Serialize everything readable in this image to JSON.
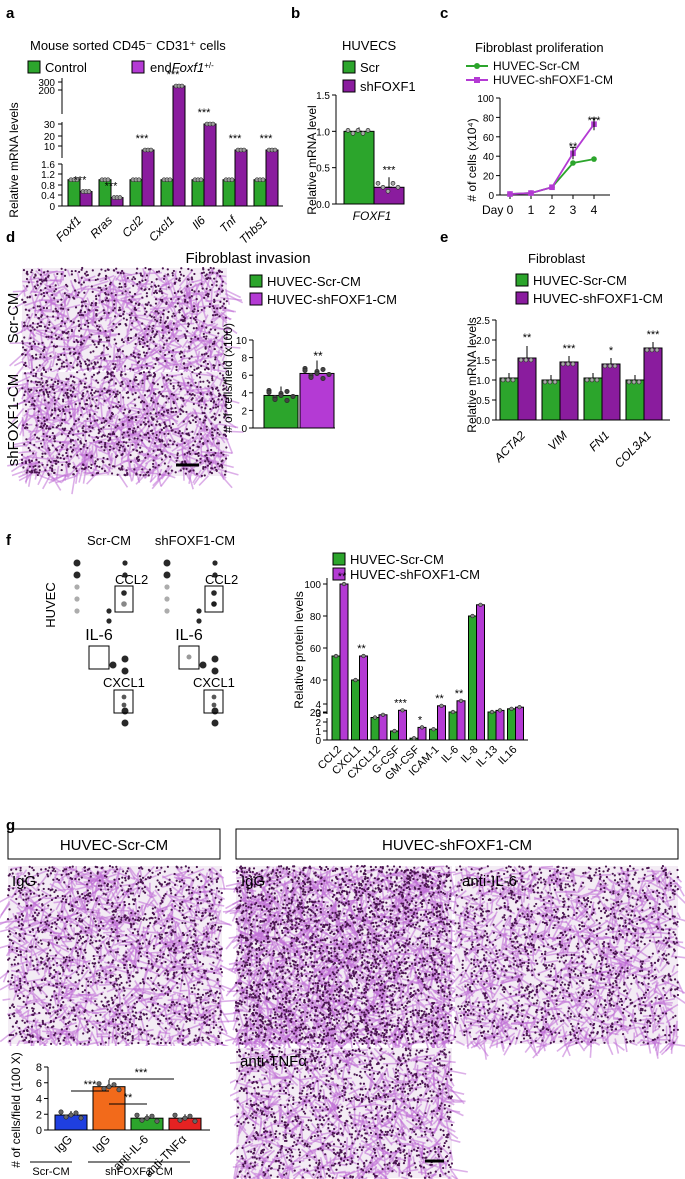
{
  "colors": {
    "green": "#2ca52c",
    "purple": "#8a1c9e",
    "bright_purple": "#b43ad4",
    "blue": "#1f3fe0",
    "orange": "#f26a1b",
    "red": "#e52222",
    "stain": "#c06ed6"
  },
  "panels": {
    "a": {
      "letter": "a",
      "title": "Mouse sorted CD45⁻ CD31⁺ cells",
      "legend": [
        "Control",
        "endFoxf1+/-"
      ],
      "ylabel": "Relative mRNA levels",
      "yticks": [
        "300",
        "200",
        "30",
        "20",
        "10",
        "1.6",
        "1.2",
        "0.8",
        "0.4",
        "0"
      ],
      "sig": [
        "***",
        "***",
        "***",
        "***",
        "***",
        "***",
        "***"
      ]
    },
    "b": {
      "letter": "b",
      "title": "HUVECS",
      "legend": [
        "Scr",
        "shFOXF1"
      ],
      "ylabel": "Relative mRNA level",
      "yticks": [
        "1.5",
        "1.0",
        "0.5",
        "0.0"
      ],
      "sig": "***"
    },
    "c": {
      "letter": "c",
      "title": "Fibroblast proliferation",
      "legend": [
        "HUVEC-Scr-CM",
        "HUVEC-shFOXF1-CM"
      ],
      "ylabel": "# of cells (x10⁴)",
      "yticks": [
        "100",
        "80",
        "60",
        "40",
        "20",
        "0"
      ],
      "xprefix": "Day",
      "sig": [
        "**",
        "***"
      ]
    },
    "d": {
      "letter": "d",
      "title": "Fibroblast invasion",
      "row_labels": [
        "Scr-CM",
        "shFOXF1-CM"
      ],
      "legend": [
        "HUVEC-Scr-CM",
        "HUVEC-shFOXF1-CM"
      ],
      "ylabel": "# of cells/field (x100)",
      "yticks": [
        "10",
        "8",
        "6",
        "4",
        "2",
        "0"
      ],
      "sig": "**"
    },
    "e": {
      "letter": "e",
      "title": "Fibroblast",
      "legend": [
        "HUVEC-Scr-CM",
        "HUVEC-shFOXF1-CM"
      ],
      "ylabel": "Relative mRNA levels",
      "yticks": [
        "2.5",
        "2.0",
        "1.5",
        "1.0",
        "0.5",
        "0.0"
      ],
      "sig": [
        "**",
        "***",
        "*",
        "***"
      ]
    },
    "f": {
      "letter": "f",
      "blot_titles": [
        "Scr-CM",
        "shFOXF1-CM"
      ],
      "row_label": "HUVEC",
      "spot_labels": [
        "CCL2",
        "IL-6",
        "CXCL1"
      ],
      "legend": [
        "HUVEC-Scr-CM",
        "HUVEC-shFOXF1-CM"
      ],
      "ylabel": "Relative protein levels",
      "yticks": [
        "100",
        "80",
        "60",
        "40",
        "20",
        "4",
        "3",
        "2",
        "1",
        "0"
      ],
      "sig": [
        "**",
        "**",
        "***",
        "*",
        "**",
        "**"
      ]
    },
    "g": {
      "letter": "g",
      "box_titles": [
        "HUVEC-Scr-CM",
        "HUVEC-shFOXF1-CM"
      ],
      "image_labels": [
        "IgG",
        "IgG",
        "anti-IL-6",
        "anti-TNFα"
      ],
      "ylabel": "# of cells/field (100 X)",
      "yticks": [
        "8",
        "6",
        "4",
        "2",
        "0"
      ],
      "sig": [
        "***",
        "**",
        "***"
      ],
      "group_labels": [
        "Scr-CM",
        "shFOXF1-CM"
      ]
    }
  },
  "chart_data": [
    {
      "type": "bar",
      "panel": "a",
      "categories": [
        "Foxf1",
        "Rras",
        "Ccl2",
        "Cxcl1",
        "Il6",
        "Tnf",
        "Thbs1"
      ],
      "series": [
        {
          "name": "Control",
          "values": [
            1.0,
            1.0,
            1.0,
            1.0,
            1.0,
            1.0,
            1.0
          ]
        },
        {
          "name": "endFoxf1+/-",
          "values": [
            0.55,
            0.32,
            10,
            250,
            30,
            10,
            10
          ]
        }
      ],
      "ylabel": "Relative mRNA levels",
      "scale": "broken"
    },
    {
      "type": "bar",
      "panel": "b",
      "categories": [
        "FOXF1"
      ],
      "series": [
        {
          "name": "Scr",
          "values": [
            1.0
          ]
        },
        {
          "name": "shFOXF1",
          "values": [
            0.23
          ]
        }
      ],
      "ylim": [
        0,
        1.5
      ]
    },
    {
      "type": "line",
      "panel": "c",
      "x": [
        0,
        1,
        2,
        3,
        4
      ],
      "series": [
        {
          "name": "HUVEC-Scr-CM",
          "values": [
            1,
            2,
            8,
            33,
            37
          ]
        },
        {
          "name": "HUVEC-shFOXF1-CM",
          "values": [
            1,
            2,
            8,
            43,
            73
          ]
        }
      ],
      "ylim": [
        0,
        100
      ],
      "xlabel": "Day"
    },
    {
      "type": "bar",
      "panel": "d",
      "categories": [
        "HUVEC-Scr-CM",
        "HUVEC-shFOXF1-CM"
      ],
      "values": [
        3.7,
        6.2
      ],
      "ylim": [
        0,
        10
      ]
    },
    {
      "type": "bar",
      "panel": "e",
      "categories": [
        "ACTA2",
        "VIM",
        "FN1",
        "COL3A1"
      ],
      "series": [
        {
          "name": "HUVEC-Scr-CM",
          "values": [
            1.05,
            1.0,
            1.05,
            1.0
          ]
        },
        {
          "name": "HUVEC-shFOXF1-CM",
          "values": [
            1.55,
            1.45,
            1.4,
            1.8
          ]
        }
      ],
      "ylim": [
        0,
        2.5
      ]
    },
    {
      "type": "bar",
      "panel": "f",
      "categories": [
        "CCL2",
        "CXCL1",
        "CXCL12",
        "G-CSF",
        "GM-CSF",
        "ICAM-1",
        "IL-6",
        "IL-8",
        "IL-13",
        "IL16"
      ],
      "series": [
        {
          "name": "HUVEC-Scr-CM",
          "values": [
            55,
            40,
            2.5,
            1.0,
            0.2,
            1.2,
            20,
            80,
            20,
            22
          ]
        },
        {
          "name": "HUVEC-shFOXF1-CM",
          "values": [
            100,
            55,
            2.8,
            3.3,
            1.4,
            3.8,
            27,
            87,
            21,
            23
          ]
        }
      ]
    },
    {
      "type": "bar",
      "panel": "g",
      "categories": [
        "IgG",
        "IgG",
        "anti-IL-6",
        "anti-TNFα"
      ],
      "values": [
        1.9,
        5.5,
        1.5,
        1.5
      ],
      "ylim": [
        0,
        8
      ]
    }
  ]
}
